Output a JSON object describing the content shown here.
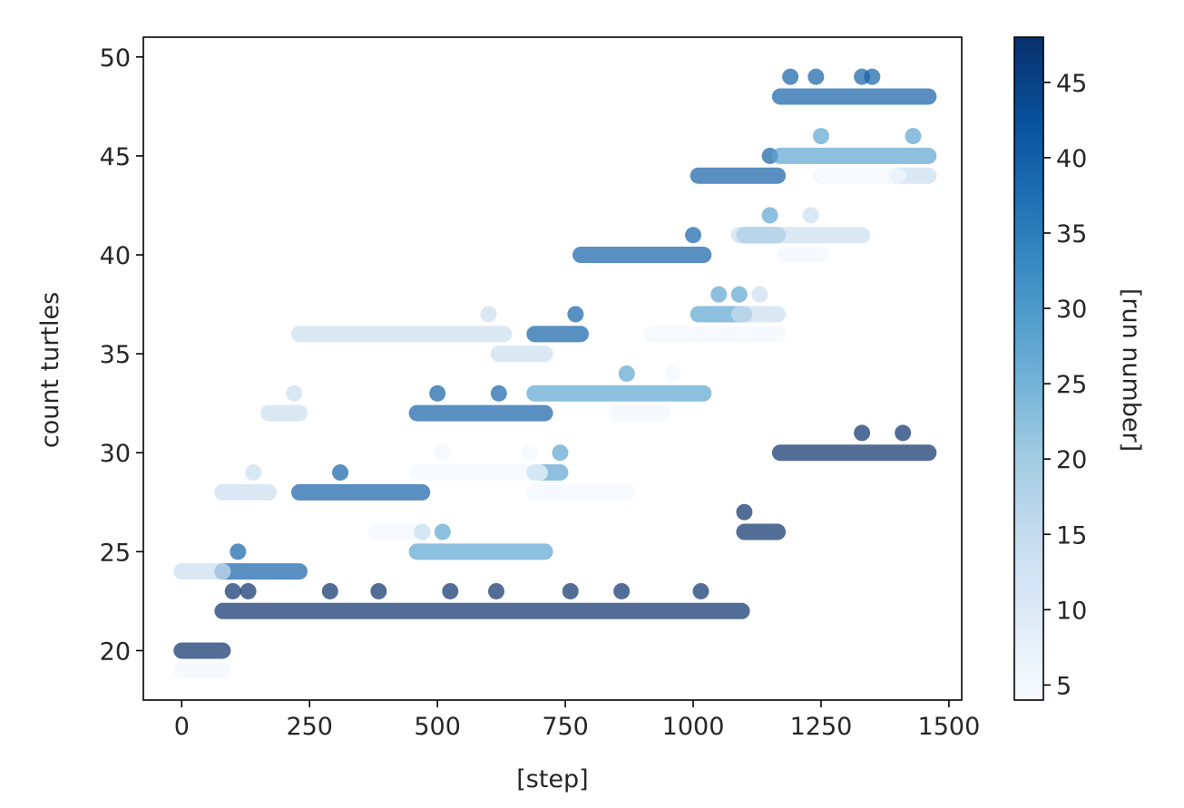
{
  "chart_data": {
    "type": "scatter",
    "title": "",
    "xlabel": "[step]",
    "ylabel": "count turtles",
    "xlim": [
      -75,
      1525
    ],
    "ylim": [
      17.5,
      51
    ],
    "xticks": [
      0,
      250,
      500,
      750,
      1000,
      1250,
      1500
    ],
    "yticks": [
      20,
      25,
      30,
      35,
      40,
      45,
      50
    ],
    "grid": false,
    "marker": "circle",
    "alpha": 0.7,
    "colormap": "Blues",
    "colorbar": {
      "label": "[run number]",
      "range": [
        4,
        48
      ],
      "ticks": [
        5,
        10,
        15,
        20,
        25,
        30,
        35,
        40,
        45
      ]
    },
    "series": [
      {
        "run": 48,
        "segments": [
          [
            0,
            80,
            20
          ],
          [
            80,
            1095,
            22
          ],
          [
            1100,
            1165,
            26
          ],
          [
            1170,
            1460,
            30
          ]
        ],
        "points": [
          [
            100,
            23
          ],
          [
            130,
            23
          ],
          [
            290,
            23
          ],
          [
            385,
            23
          ],
          [
            525,
            23
          ],
          [
            615,
            23
          ],
          [
            760,
            23
          ],
          [
            860,
            23
          ],
          [
            1015,
            23
          ],
          [
            1100,
            27
          ],
          [
            1330,
            31
          ],
          [
            1410,
            31
          ]
        ]
      },
      {
        "run": 40,
        "segments": [
          [
            80,
            230,
            24
          ],
          [
            230,
            470,
            28
          ],
          [
            460,
            710,
            32
          ],
          [
            690,
            780,
            36
          ],
          [
            780,
            1020,
            40
          ],
          [
            1010,
            1165,
            44
          ],
          [
            1170,
            1460,
            48
          ]
        ],
        "points": [
          [
            110,
            25
          ],
          [
            310,
            29
          ],
          [
            500,
            33
          ],
          [
            620,
            33
          ],
          [
            770,
            37
          ],
          [
            1000,
            41
          ],
          [
            1150,
            45
          ],
          [
            1190,
            49
          ],
          [
            1240,
            49
          ],
          [
            1330,
            49
          ],
          [
            1350,
            49
          ]
        ]
      },
      {
        "run": 28,
        "segments": [
          [
            460,
            710,
            25
          ],
          [
            690,
            740,
            29
          ],
          [
            690,
            1020,
            33
          ],
          [
            1010,
            1100,
            37
          ],
          [
            1100,
            1165,
            41
          ],
          [
            1170,
            1460,
            45
          ]
        ],
        "points": [
          [
            470,
            26
          ],
          [
            510,
            26
          ],
          [
            740,
            30
          ],
          [
            870,
            34
          ],
          [
            1050,
            38
          ],
          [
            1090,
            38
          ],
          [
            1150,
            42
          ],
          [
            1250,
            46
          ],
          [
            1430,
            46
          ]
        ]
      },
      {
        "run": 14,
        "segments": [
          [
            0,
            80,
            24
          ],
          [
            80,
            170,
            28
          ],
          [
            170,
            230,
            32
          ],
          [
            230,
            630,
            36
          ],
          [
            620,
            710,
            35
          ],
          [
            1090,
            1330,
            41
          ],
          [
            1090,
            1165,
            37
          ],
          [
            1400,
            1460,
            44
          ]
        ],
        "points": [
          [
            140,
            29
          ],
          [
            220,
            33
          ],
          [
            600,
            37
          ],
          [
            1130,
            38
          ],
          [
            1230,
            42
          ]
        ]
      },
      {
        "run": 5,
        "segments": [
          [
            0,
            80,
            19
          ],
          [
            380,
            470,
            26
          ],
          [
            460,
            700,
            29
          ],
          [
            690,
            870,
            28
          ],
          [
            850,
            940,
            32
          ],
          [
            920,
            1165,
            36
          ],
          [
            1180,
            1250,
            40
          ],
          [
            1250,
            1400,
            44
          ]
        ],
        "points": [
          [
            510,
            30
          ],
          [
            680,
            30
          ],
          [
            960,
            34
          ]
        ]
      }
    ]
  }
}
